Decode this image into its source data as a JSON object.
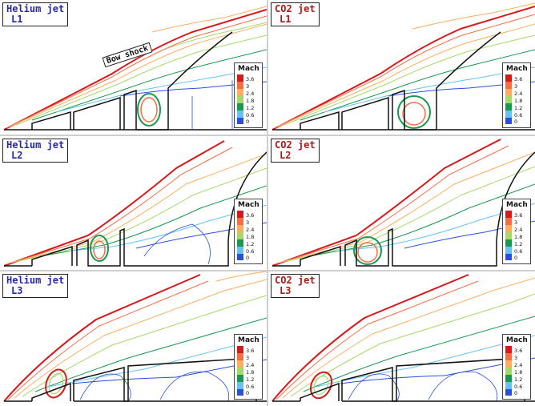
{
  "figure": {
    "legend_title": "Mach",
    "legend_ticks": [
      "3.6",
      "3",
      "2.4",
      "1.8",
      "1.2",
      "0.6",
      "0"
    ],
    "legend_colors": [
      "#d7191c",
      "#f46d43",
      "#fdae61",
      "#a6d96a",
      "#1a9850",
      "#66c2f2",
      "#2b4fd8"
    ],
    "annotation": "Bow shock",
    "panels": [
      {
        "gas": "Helium jet",
        "case": "L1",
        "gas_color": "#2a2aa8"
      },
      {
        "gas": "CO2 jet",
        "case": "L1",
        "gas_color": "#b01818"
      },
      {
        "gas": "Helium jet",
        "case": "L2",
        "gas_color": "#2a2aa8"
      },
      {
        "gas": "CO2 jet",
        "case": "L2",
        "gas_color": "#b01818"
      },
      {
        "gas": "Helium jet",
        "case": "L3",
        "gas_color": "#2a2aa8"
      },
      {
        "gas": "CO2 jet",
        "case": "L3",
        "gas_color": "#b01818"
      }
    ]
  }
}
